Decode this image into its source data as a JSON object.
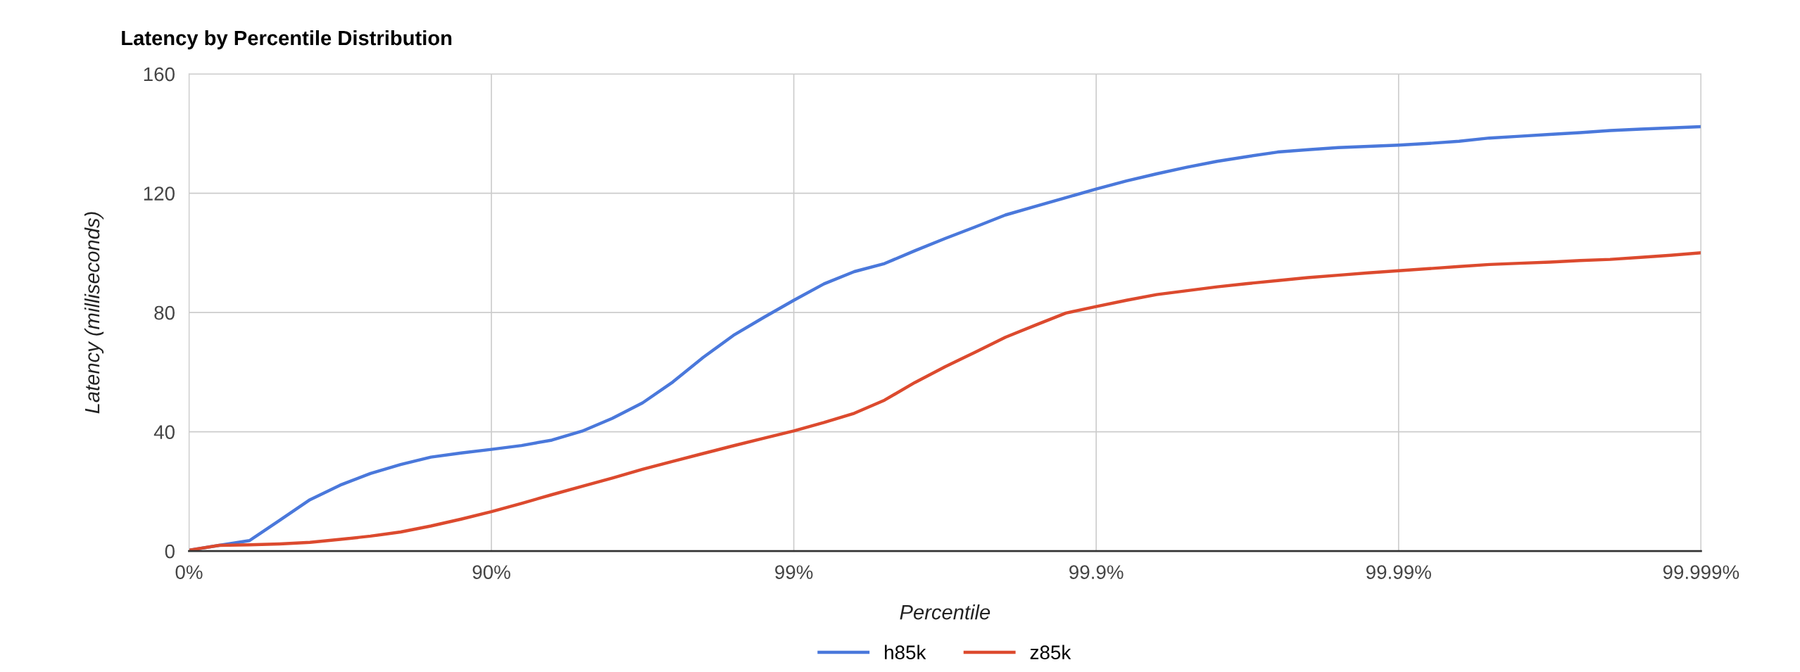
{
  "chart_data": {
    "type": "line",
    "title": "Latency by Percentile Distribution",
    "xlabel": "Percentile",
    "ylabel": "Latency (milliseconds)",
    "categories": [
      "0%",
      null,
      null,
      null,
      null,
      null,
      null,
      null,
      null,
      null,
      "90%",
      null,
      null,
      null,
      null,
      null,
      null,
      null,
      null,
      null,
      "99%",
      null,
      null,
      null,
      null,
      null,
      null,
      null,
      null,
      null,
      "99.9%",
      null,
      null,
      null,
      null,
      null,
      null,
      null,
      null,
      null,
      "99.99%",
      null,
      null,
      null,
      null,
      null,
      null,
      null,
      null,
      null,
      "99.999%"
    ],
    "ylim": [
      0,
      160
    ],
    "yticks": [
      0,
      40,
      80,
      120,
      160
    ],
    "grid": true,
    "legend": "bottom",
    "marker": "none",
    "line_style": "solid",
    "series": [
      {
        "name": "h85k",
        "color": "#4a78db",
        "values": [
          0.3,
          1.9,
          3.5,
          10.3,
          17.2,
          22.1,
          26.0,
          29.0,
          31.5,
          32.9,
          34.1,
          35.4,
          37.2,
          40.2,
          44.5,
          49.7,
          56.7,
          64.9,
          72.3,
          78.3,
          84.1,
          89.6,
          93.7,
          96.4,
          100.7,
          104.8,
          108.7,
          112.7,
          115.6,
          118.5,
          121.4,
          124.1,
          126.5,
          128.7,
          130.7,
          132.3,
          133.8,
          134.6,
          135.3,
          135.7,
          136.1,
          136.7,
          137.4,
          138.5,
          139.1,
          139.7,
          140.3,
          141.0,
          141.5,
          141.9,
          142.3
        ]
      },
      {
        "name": "z85k",
        "color": "#dc4a2e",
        "values": [
          0.3,
          1.9,
          2.1,
          2.4,
          2.9,
          3.9,
          5.0,
          6.4,
          8.4,
          10.7,
          13.2,
          16.0,
          18.9,
          21.7,
          24.5,
          27.4,
          30.1,
          32.7,
          35.3,
          37.8,
          40.3,
          43.1,
          46.2,
          50.6,
          56.5,
          61.8,
          66.7,
          71.7,
          75.8,
          79.8,
          82.0,
          84.1,
          86.0,
          87.3,
          88.6,
          89.7,
          90.7,
          91.7,
          92.5,
          93.3,
          94.0,
          94.7,
          95.4,
          96.1,
          96.5,
          96.9,
          97.4,
          97.8,
          98.5,
          99.2,
          100.0
        ]
      }
    ]
  }
}
